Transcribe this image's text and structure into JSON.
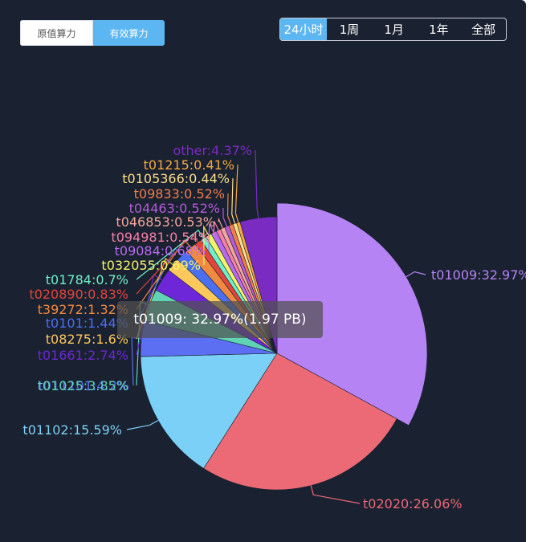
{
  "toggle": {
    "options": [
      "原值算力",
      "有效算力"
    ],
    "active": 1
  },
  "range": {
    "options": [
      "24小时",
      "1周",
      "1月",
      "1年",
      "全部"
    ],
    "active": 0
  },
  "tooltip": {
    "text": "t01009: 32.97%(1.97 PB)"
  },
  "chart_data": {
    "type": "pie",
    "unit": "%",
    "slices": [
      {
        "name": "t01009",
        "value": 32.97,
        "label": "t01009:32.97%",
        "color": "#b683f5"
      },
      {
        "name": "t02020",
        "value": 26.06,
        "label": "t02020:26.06%",
        "color": "#ec6a75"
      },
      {
        "name": "t01102",
        "value": 15.59,
        "label": "t01102:15.59%",
        "color": "#7bd0f7"
      },
      {
        "name": "t011101",
        "value": 4.2,
        "label": "t011101:4.2%",
        "color": "#5c6ef2"
      },
      {
        "name": "t01025",
        "value": 3.85,
        "label": "t01025:3.85%",
        "color": "#5fd3b4"
      },
      {
        "name": "t01661",
        "value": 2.74,
        "label": "t01661:2.74%",
        "color": "#6d27d9"
      },
      {
        "name": "t08275",
        "value": 1.6,
        "label": "t08275:1.6%",
        "color": "#fcc85b"
      },
      {
        "name": "t0101",
        "value": 1.44,
        "label": "t0101:1.44%",
        "color": "#4a6ff0"
      },
      {
        "name": "t39272",
        "value": 1.32,
        "label": "t39272:1.32%",
        "color": "#f08a40"
      },
      {
        "name": "t020890",
        "value": 0.83,
        "label": "t020890:0.83%",
        "color": "#e2453c"
      },
      {
        "name": "t01784",
        "value": 0.7,
        "label": "t01784:0.7%",
        "color": "#6ff0c8"
      },
      {
        "name": "t032055",
        "value": 0.69,
        "label": "t032055:0.69%",
        "color": "#f3f46a"
      },
      {
        "name": "t09084",
        "value": 0.68,
        "label": "t09084:0.68%",
        "color": "#b86af0"
      },
      {
        "name": "t094981",
        "value": 0.54,
        "label": "t094981:0.54%",
        "color": "#f57fa6"
      },
      {
        "name": "t046853",
        "value": 0.53,
        "label": "t046853:0.53%",
        "color": "#f2a79a"
      },
      {
        "name": "t04463",
        "value": 0.52,
        "label": "t04463:0.52%",
        "color": "#b45bd8"
      },
      {
        "name": "t09833",
        "value": 0.52,
        "label": "t09833:0.52%",
        "color": "#f27d4a"
      },
      {
        "name": "t0105366",
        "value": 0.44,
        "label": "t0105366:0.44%",
        "color": "#fde08a"
      },
      {
        "name": "t01215",
        "value": 0.41,
        "label": "t01215:0.41%",
        "color": "#f5a742"
      },
      {
        "name": "other",
        "value": 4.37,
        "label": "other:4.37%",
        "color": "#7a2bc2"
      }
    ]
  }
}
